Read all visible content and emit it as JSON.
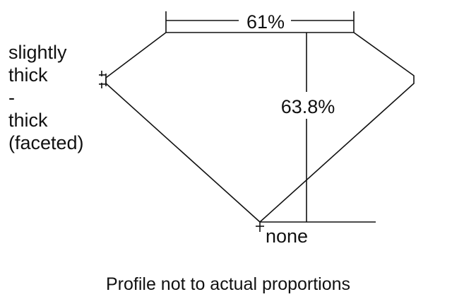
{
  "diagram": {
    "girdle_label_lines": [
      "slightly",
      "thick",
      "-",
      "thick",
      "(faceted)"
    ],
    "table_label": "61%",
    "depth_label": "63.8%",
    "culet_label": "none",
    "caption": "Profile not to actual proportions",
    "line_color": "#111111",
    "background_color": "#ffffff"
  }
}
